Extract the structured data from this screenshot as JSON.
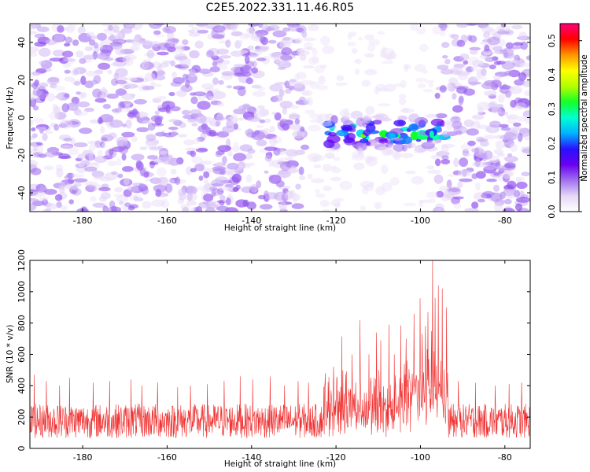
{
  "title": "C2E5.2022.331.11.46.R05",
  "chart_data": [
    {
      "type": "heatmap",
      "title": "C2E5.2022.331.11.46.R05",
      "xlabel": "Height of straight line (km)",
      "ylabel": "Frequency (Hz)",
      "xlim": [
        -192.5,
        -74
      ],
      "ylim": [
        -50,
        50
      ],
      "x_ticks": [
        -180,
        -160,
        -140,
        -120,
        -100,
        -80
      ],
      "y_ticks": [
        -40,
        -20,
        0,
        20,
        40
      ],
      "colorbar": {
        "label": "Normalized spectral amplitude",
        "range": [
          0.0,
          0.55
        ],
        "ticks": [
          0.0,
          0.1,
          0.2,
          0.3,
          0.4,
          0.5
        ],
        "colormap": [
          "#ffffff",
          "#e6d7f7",
          "#a070f0",
          "#6a00f0",
          "#2a10ff",
          "#00b4ff",
          "#00ffd2",
          "#14ff28",
          "#b4ff00",
          "#ffff00",
          "#ff9600",
          "#ff0000",
          "#ff0078"
        ]
      },
      "features": [
        {
          "x_range": [
            -122,
            -94
          ],
          "y_center": -8,
          "peak_amplitude": 0.36,
          "description": "enhanced signal band"
        },
        {
          "x_range": [
            -127,
            -96
          ],
          "frequency_range": [
            -50,
            50
          ],
          "background": "suppressed"
        }
      ]
    },
    {
      "type": "line",
      "xlabel": "Height of straight line (km)",
      "ylabel": "SNR (10 * v/v)",
      "xlim": [
        -192.5,
        -74
      ],
      "ylim": [
        0,
        1200
      ],
      "x_ticks": [
        -180,
        -160,
        -140,
        -120,
        -100,
        -80
      ],
      "y_ticks": [
        0,
        200,
        400,
        600,
        800,
        1000,
        1200
      ],
      "series": [
        {
          "color": "#f03030",
          "baseline_mean": 175,
          "baseline_spread": 110,
          "peaks": [
            {
              "x": -191.5,
              "y": 470
            },
            {
              "x": -188.6,
              "y": 430
            },
            {
              "x": -185.5,
              "y": 400
            },
            {
              "x": -183.1,
              "y": 450
            },
            {
              "x": -177.5,
              "y": 420
            },
            {
              "x": -173.6,
              "y": 430
            },
            {
              "x": -168.5,
              "y": 440
            },
            {
              "x": -166.0,
              "y": 400
            },
            {
              "x": -162.3,
              "y": 420
            },
            {
              "x": -157.5,
              "y": 390
            },
            {
              "x": -154.5,
              "y": 400
            },
            {
              "x": -150.5,
              "y": 410
            },
            {
              "x": -146.5,
              "y": 430
            },
            {
              "x": -142.7,
              "y": 460
            },
            {
              "x": -139.7,
              "y": 440
            },
            {
              "x": -135.6,
              "y": 460
            },
            {
              "x": -132.2,
              "y": 400
            },
            {
              "x": -129.0,
              "y": 430
            },
            {
              "x": -126.5,
              "y": 420
            },
            {
              "x": -122.5,
              "y": 480
            },
            {
              "x": -120.6,
              "y": 520
            },
            {
              "x": -118.6,
              "y": 715
            },
            {
              "x": -116.2,
              "y": 600
            },
            {
              "x": -114.3,
              "y": 818
            },
            {
              "x": -112.2,
              "y": 600
            },
            {
              "x": -110.4,
              "y": 740
            },
            {
              "x": -109.4,
              "y": 690
            },
            {
              "x": -107.5,
              "y": 790
            },
            {
              "x": -106.2,
              "y": 600
            },
            {
              "x": -104.7,
              "y": 785
            },
            {
              "x": -103.4,
              "y": 700
            },
            {
              "x": -101.5,
              "y": 860
            },
            {
              "x": -100.1,
              "y": 958
            },
            {
              "x": -98.8,
              "y": 780
            },
            {
              "x": -98.2,
              "y": 870
            },
            {
              "x": -97.1,
              "y": 1200
            },
            {
              "x": -96.5,
              "y": 960
            },
            {
              "x": -95.8,
              "y": 1040
            },
            {
              "x": -94.8,
              "y": 1020
            },
            {
              "x": -93.8,
              "y": 900
            },
            {
              "x": -91.0,
              "y": 430
            },
            {
              "x": -87.0,
              "y": 420
            },
            {
              "x": -82.3,
              "y": 400
            },
            {
              "x": -79.0,
              "y": 410
            },
            {
              "x": -76.0,
              "y": 420
            }
          ]
        }
      ]
    }
  ]
}
